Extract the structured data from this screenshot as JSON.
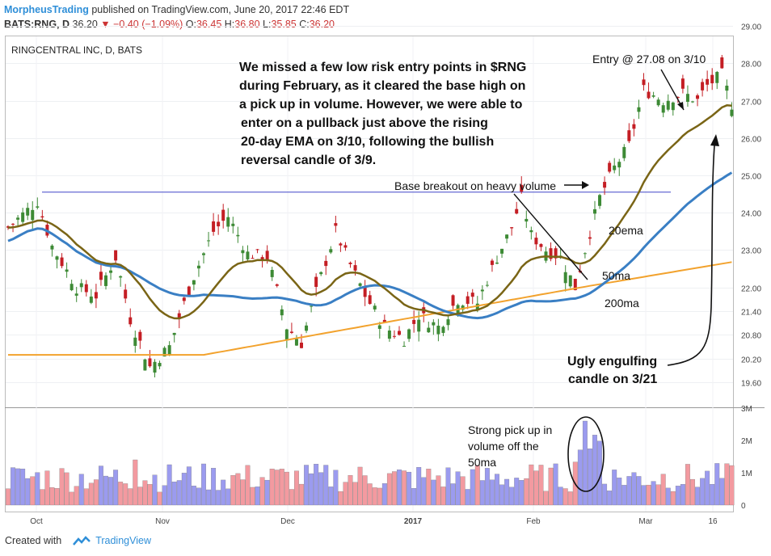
{
  "header": {
    "line1_user": "MorpheusTrading",
    "line1_rest": "published on TradingView.com, June 20, 2017 22:46 EDT",
    "symbol": "BATS:RNG, D",
    "last": "36.20",
    "change": "−0.40 (−1.09%)",
    "o_label": "O:",
    "o_val": "36.45",
    "h_label": "H:",
    "h_val": "36.80",
    "l_label": "L:",
    "l_val": "35.85",
    "c_label": "C:",
    "c_val": "36.20"
  },
  "footer": {
    "created_with": "Created with",
    "brand": "TradingView"
  },
  "colors": {
    "up": "#3d8a35",
    "down": "#c41e24",
    "ema20": "#7a6516",
    "ma50": "#3a7fc4",
    "ma200": "#f2a22d",
    "vol_up": "#9b9bef",
    "vol_down": "#f39aa0",
    "base_line": "#4147c8"
  },
  "chart_data": [
    {
      "type": "candlestick",
      "title": "RINGCENTRAL INC, D, BATS",
      "y_ticks": [
        "29.00",
        "28.00",
        "27.00",
        "26.00",
        "25.00",
        "24.00",
        "23.00",
        "22.00",
        "21.40",
        "20.80",
        "20.20",
        "19.60"
      ],
      "x_ticks": [
        "Oct",
        "Nov",
        "Dec",
        "2017",
        "Feb",
        "Mar",
        "16"
      ],
      "series": [
        {
          "name": "20ema",
          "label": "20ema"
        },
        {
          "name": "50ma",
          "label": "50ma"
        },
        {
          "name": "200ma",
          "label": "200ma"
        }
      ],
      "base_breakout_level": 24.55,
      "annotations": [
        "We missed a few low risk entry points in $RNG",
        "during February, as it cleared the base high on",
        "a pick up in volume.  However, we were able to",
        "enter on a pullback just above the rising",
        "20-day EMA on 3/10, following the bullish",
        "reversal candle of 3/9."
      ],
      "entry_label": "Entry @ 27.08 on 3/10",
      "base_label": "Base breakout on heavy volume",
      "ugly_label_1": "Ugly engulfing",
      "ugly_label_2": "candle on 3/21"
    },
    {
      "type": "bar",
      "title": "",
      "y_ticks": [
        "3M",
        "2M",
        "1M",
        "0"
      ],
      "annotation": [
        "Strong pick up in",
        "volume off the",
        "50ma"
      ]
    }
  ]
}
